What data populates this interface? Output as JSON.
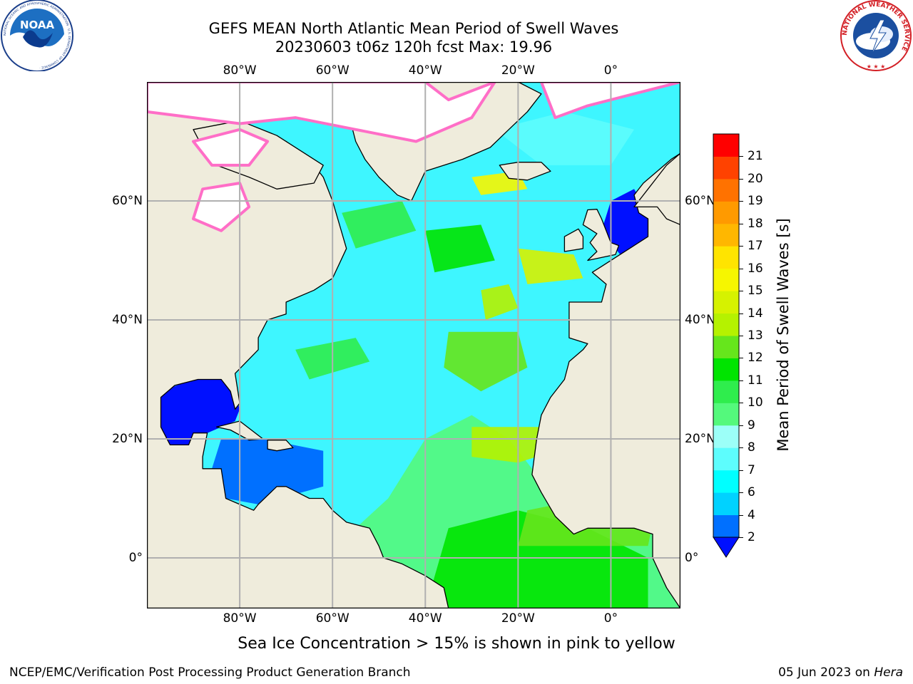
{
  "title": {
    "line1": "GEFS MEAN North Atlantic Mean Period of Swell Waves",
    "line2": "20230603 t06z 120h fcst   Max: 19.96"
  },
  "map": {
    "projection": "equirectangular",
    "lon_range": [
      -100,
      15
    ],
    "lat_range": [
      -8.5,
      80
    ],
    "lon_ticks": [
      -80,
      -60,
      -40,
      -20,
      0
    ],
    "lon_tick_labels": [
      "80°W",
      "60°W",
      "40°W",
      "20°W",
      "0°"
    ],
    "lat_ticks": [
      0,
      20,
      40,
      60
    ],
    "lat_tick_labels": [
      "0°",
      "20°N",
      "40°N",
      "60°N"
    ],
    "grid": true,
    "colors": {
      "land": "#efecdc",
      "grid": "#b0b0b0",
      "ice": "#ffffff",
      "coast": "#000000"
    }
  },
  "colorbar": {
    "label": "Mean Period of Swell Waves [s]",
    "ticks": [
      "2",
      "4",
      "6",
      "7",
      "8",
      "9",
      "10",
      "11",
      "12",
      "13",
      "14",
      "15",
      "16",
      "17",
      "18",
      "19",
      "20",
      "21"
    ],
    "colors": [
      "#0070ff",
      "#00d2ff",
      "#00ffff",
      "#5dfdfd",
      "#9cfff8",
      "#54f97c",
      "#2fed4d",
      "#00e400",
      "#66e61c",
      "#b5f200",
      "#d6f200",
      "#f6f600",
      "#ffe400",
      "#ffb700",
      "#ff9a00",
      "#ff7200",
      "#ff4200",
      "#ff0000"
    ],
    "under_color": "#0010ff",
    "extend": "min"
  },
  "caption": "Sea Ice Concentration > 15% is shown in pink to yellow",
  "footer": {
    "left": "NCEP/EMC/Verification Post Processing Product Generation Branch",
    "right_date": "05 Jun 2023 on ",
    "right_machine": "Hera"
  },
  "logos": {
    "noaa": "NOAA",
    "noaa_ring": "NATIONAL OCEANIC AND ATMOSPHERIC ADMINISTRATION · U.S. DEPARTMENT OF COMMERCE ·",
    "nws_ring": "NATIONAL WEATHER SERVICE"
  }
}
